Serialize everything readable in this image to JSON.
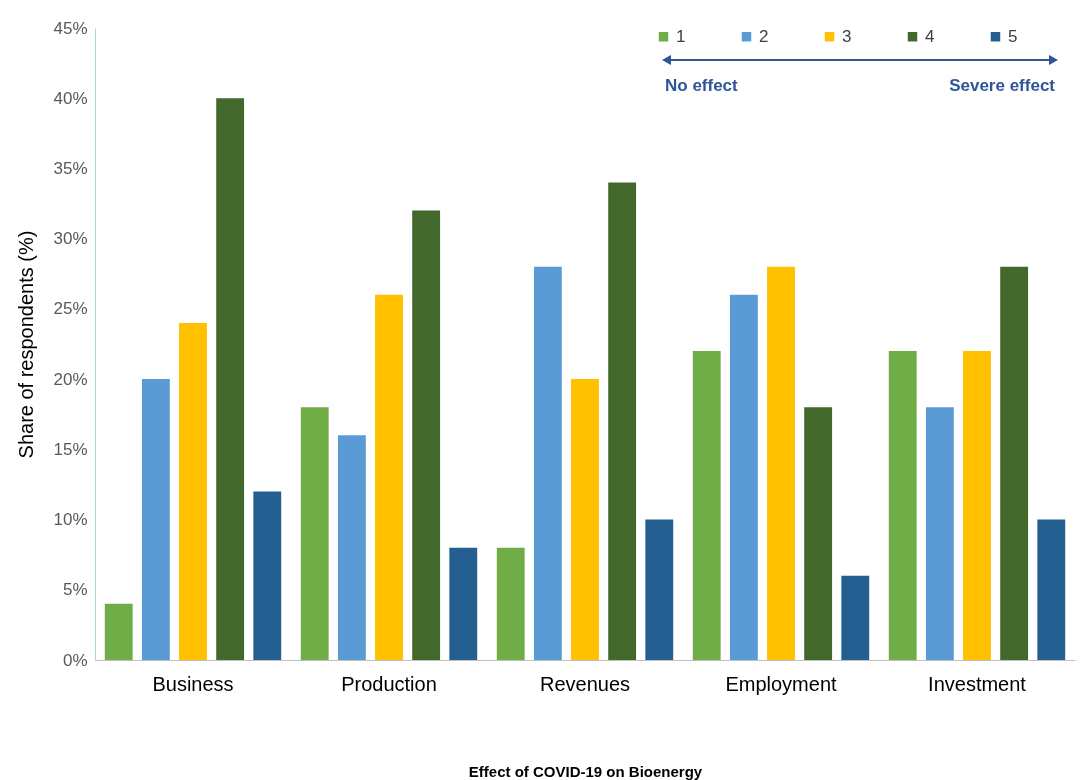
{
  "chart_data": {
    "type": "bar",
    "xlabel": "Effect of COVID-19 on Bioenergy",
    "ylabel": "Share of respondents (%)",
    "categories": [
      "Business",
      "Production",
      "Revenues",
      "Employment",
      "Investment"
    ],
    "series": [
      {
        "name": "1",
        "color": "#70ad47",
        "values": [
          4,
          18,
          8,
          22,
          22
        ]
      },
      {
        "name": "2",
        "color": "#5b9bd5",
        "values": [
          20,
          16,
          28,
          26,
          18
        ]
      },
      {
        "name": "3",
        "color": "#ffc000",
        "values": [
          24,
          26,
          20,
          28,
          22
        ]
      },
      {
        "name": "4",
        "color": "#43682b",
        "values": [
          40,
          32,
          34,
          18,
          28
        ]
      },
      {
        "name": "5",
        "color": "#255e91",
        "values": [
          12,
          8,
          10,
          6,
          10
        ]
      }
    ],
    "ylim": [
      0,
      45
    ],
    "yticks": [
      {
        "value": 0,
        "label": "0%"
      },
      {
        "value": 5,
        "label": "5%"
      },
      {
        "value": 10,
        "label": "10%"
      },
      {
        "value": 15,
        "label": "15%"
      },
      {
        "value": 20,
        "label": "20%"
      },
      {
        "value": 25,
        "label": "25%"
      },
      {
        "value": 30,
        "label": "30%"
      },
      {
        "value": 35,
        "label": "35%"
      },
      {
        "value": 40,
        "label": "40%"
      },
      {
        "value": 45,
        "label": "45%"
      }
    ],
    "annotations": [
      "No effect",
      "Severe effect"
    ],
    "legend": "top right",
    "grid": false
  }
}
